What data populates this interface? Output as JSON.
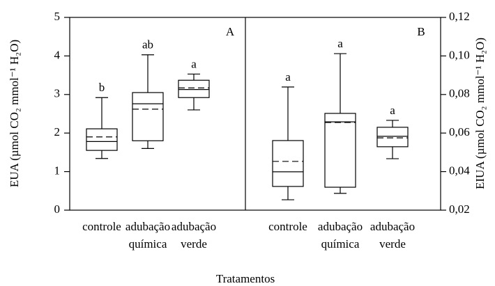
{
  "chart_data": [
    {
      "type": "box",
      "panel_label": "A",
      "ylabel": "EUA (µmol CO₂ mmol⁻¹ H₂O)",
      "xlabel": "Tratamentos",
      "ylim": [
        0,
        5
      ],
      "yticks": [
        0,
        1,
        2,
        3,
        4,
        5
      ],
      "categories": [
        "controle",
        "adubação química",
        "adubação verde"
      ],
      "boxes": [
        {
          "low": 1.34,
          "q1": 1.55,
          "median": 1.78,
          "mean": 1.9,
          "q3": 2.11,
          "high": 2.92
        },
        {
          "low": 1.6,
          "q1": 1.8,
          "median": 2.76,
          "mean": 2.62,
          "q3": 3.05,
          "high": 4.03
        },
        {
          "low": 2.6,
          "q1": 2.92,
          "median": 3.13,
          "mean": 3.17,
          "q3": 3.37,
          "high": 3.53
        }
      ],
      "letters": [
        "b",
        "ab",
        "a"
      ]
    },
    {
      "type": "box",
      "panel_label": "B",
      "axis": "y2",
      "y2label": "EIUA (µmol CO₂ mmol⁻¹ H₂O)",
      "y2lim": [
        0.02,
        0.12
      ],
      "y2ticks": [
        {
          "value": 0.02,
          "label": "0,02"
        },
        {
          "value": 0.04,
          "label": "0,04"
        },
        {
          "value": 0.06,
          "label": "0,06"
        },
        {
          "value": 0.08,
          "label": "0,08"
        },
        {
          "value": 0.1,
          "label": "0,10"
        },
        {
          "value": 0.12,
          "label": "0,12"
        }
      ],
      "categories": [
        "controle",
        "adubação química",
        "adubação verde"
      ],
      "boxes": [
        {
          "low": 0.0254,
          "q1": 0.0323,
          "median": 0.0399,
          "mean": 0.0453,
          "q3": 0.0561,
          "high": 0.0839
        },
        {
          "low": 0.0287,
          "q1": 0.0319,
          "median": 0.0658,
          "mean": 0.0655,
          "q3": 0.0702,
          "high": 0.1012
        },
        {
          "low": 0.0467,
          "q1": 0.0529,
          "median": 0.0583,
          "mean": 0.0575,
          "q3": 0.063,
          "high": 0.0666
        }
      ],
      "letters": [
        "a",
        "a",
        "a"
      ]
    }
  ]
}
